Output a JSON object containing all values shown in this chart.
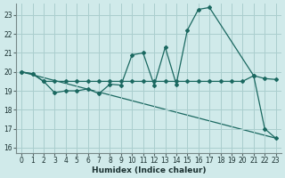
{
  "xlabel": "Humidex (Indice chaleur)",
  "bg_color": "#d0eaea",
  "grid_color": "#aacece",
  "line_color": "#1a6860",
  "xlim": [
    -0.5,
    23.5
  ],
  "ylim": [
    15.7,
    23.6
  ],
  "xticks": [
    0,
    1,
    2,
    3,
    4,
    5,
    6,
    7,
    8,
    9,
    10,
    11,
    12,
    13,
    14,
    15,
    16,
    17,
    18,
    19,
    20,
    21,
    22,
    23
  ],
  "yticks": [
    16,
    17,
    18,
    19,
    20,
    21,
    22,
    23
  ],
  "line1_x": [
    0,
    1,
    2,
    3,
    4,
    5,
    6,
    7,
    8,
    9,
    10,
    11,
    12,
    13,
    14,
    15,
    16,
    17,
    21,
    22,
    23
  ],
  "line1_y": [
    20.0,
    19.9,
    19.5,
    18.9,
    19.0,
    19.0,
    19.1,
    18.85,
    19.35,
    19.3,
    20.9,
    21.0,
    19.3,
    21.3,
    19.35,
    22.2,
    23.3,
    23.4,
    19.8,
    17.0,
    16.5
  ],
  "line2_x": [
    0,
    1,
    2,
    3,
    4,
    5,
    6,
    7,
    8,
    9,
    10,
    11,
    12,
    13,
    14,
    15,
    16,
    17,
    18,
    19,
    20,
    21,
    22,
    23
  ],
  "line2_y": [
    20.0,
    19.9,
    19.5,
    19.5,
    19.5,
    19.5,
    19.5,
    19.5,
    19.5,
    19.5,
    19.5,
    19.5,
    19.5,
    19.5,
    19.5,
    19.5,
    19.5,
    19.5,
    19.5,
    19.5,
    19.5,
    19.8,
    19.65,
    19.6
  ],
  "line3_x": [
    0,
    23
  ],
  "line3_y": [
    20.0,
    16.5
  ]
}
